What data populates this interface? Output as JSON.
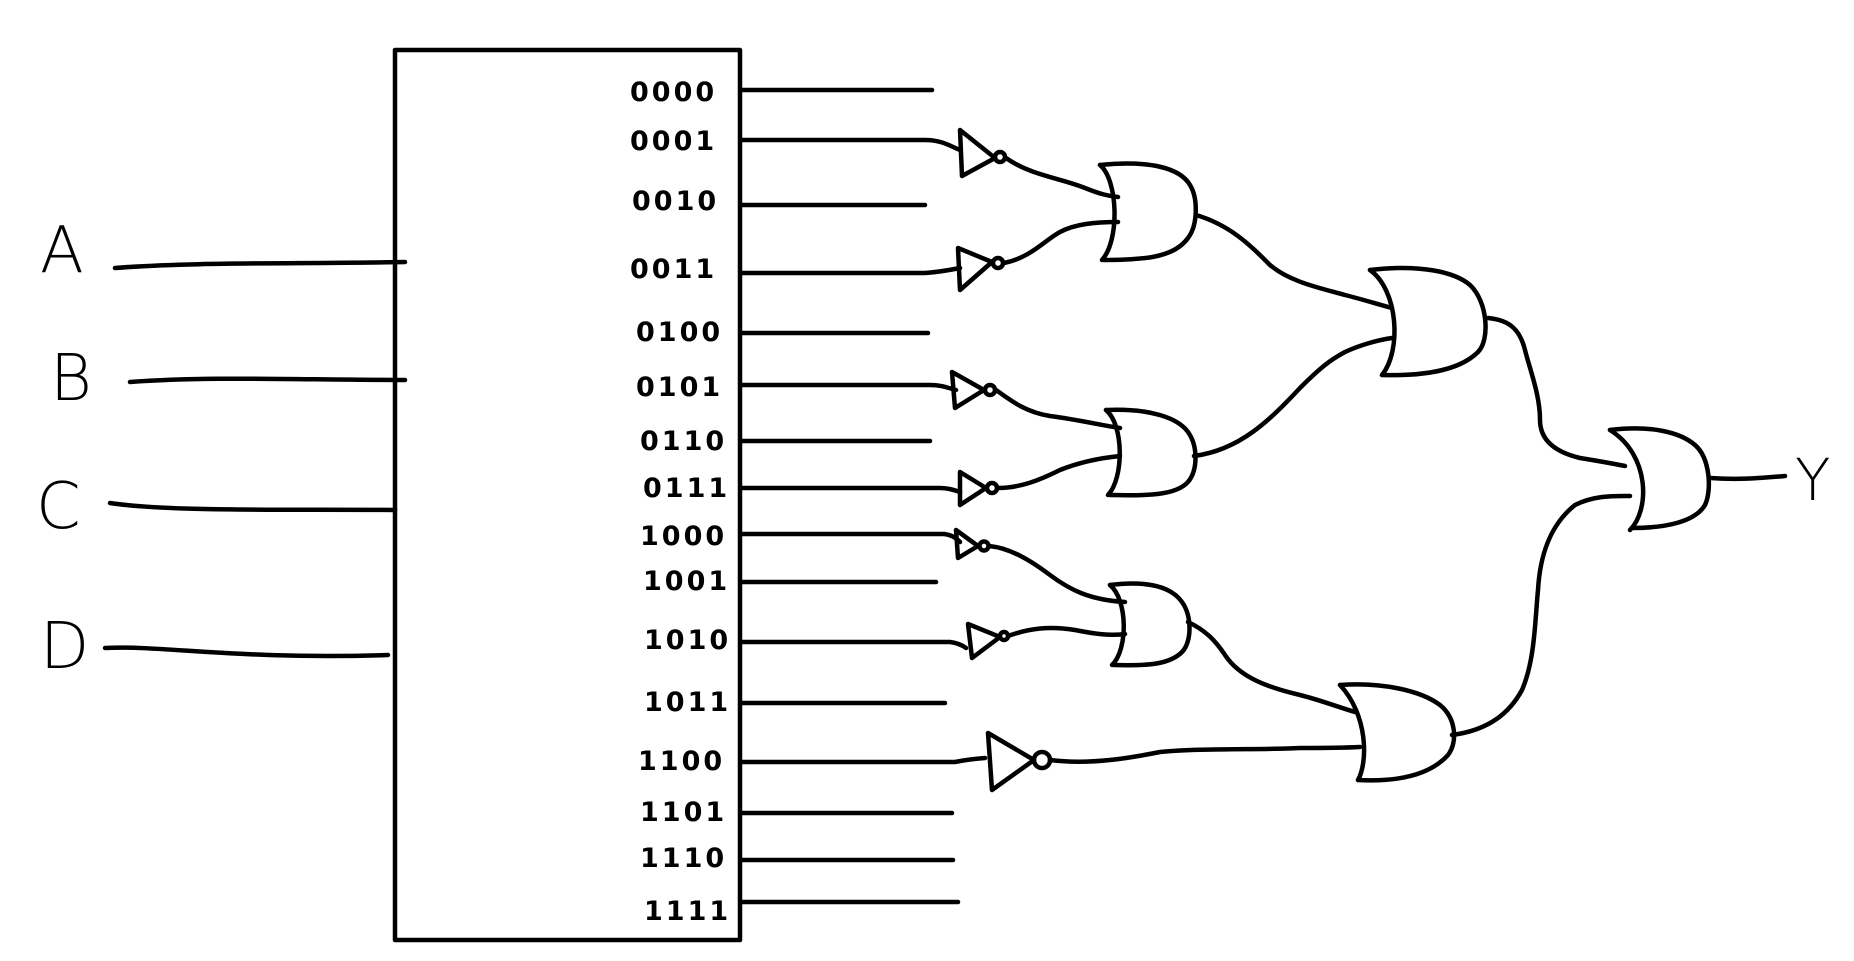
{
  "inputs": [
    "A",
    "B",
    "C",
    "D"
  ],
  "decoder_outputs": [
    "0000",
    "0001",
    "0010",
    "0011",
    "0100",
    "0101",
    "0110",
    "0111",
    "1000",
    "1001",
    "1010",
    "1011",
    "1100",
    "1101",
    "1110",
    "1111"
  ],
  "output_label": "Y",
  "ink_color": "#000000"
}
